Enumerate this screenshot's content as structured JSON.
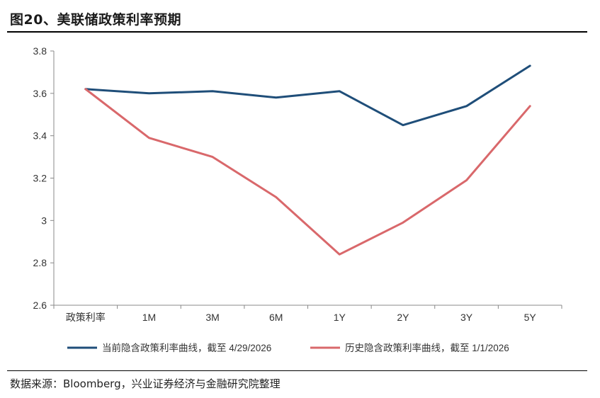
{
  "header": {
    "title": "图20、美联储政策利率预期"
  },
  "footer": {
    "source": "数据来源：Bloomberg，兴业证券经济与金融研究院整理"
  },
  "colors": {
    "current": "#1f4e79",
    "historical": "#d9686b",
    "axis": "#888888"
  },
  "chart_data": {
    "type": "line",
    "title": "",
    "xlabel": "",
    "ylabel": "",
    "categories": [
      "政策利率",
      "1M",
      "3M",
      "6M",
      "1Y",
      "2Y",
      "3Y",
      "5Y"
    ],
    "ylim": [
      2.6,
      3.8
    ],
    "yticks": [
      2.6,
      2.8,
      3,
      3.2,
      3.4,
      3.6,
      3.8
    ],
    "ytick_labels": [
      "2.6",
      "2.8",
      "3",
      "3.2",
      "3.4",
      "3.6",
      "3.8"
    ],
    "grid": false,
    "legend_position": "bottom",
    "series": [
      {
        "name": "当前隐含政策利率曲线，截至 4/29/2026",
        "color": "#1f4e79",
        "values": [
          3.62,
          3.6,
          3.61,
          3.58,
          3.61,
          3.45,
          3.54,
          3.73
        ]
      },
      {
        "name": "历史隐含政策利率曲线，截至 1/1/2026",
        "color": "#d9686b",
        "values": [
          3.62,
          3.39,
          3.3,
          3.11,
          2.84,
          2.99,
          3.19,
          3.54
        ]
      }
    ]
  }
}
